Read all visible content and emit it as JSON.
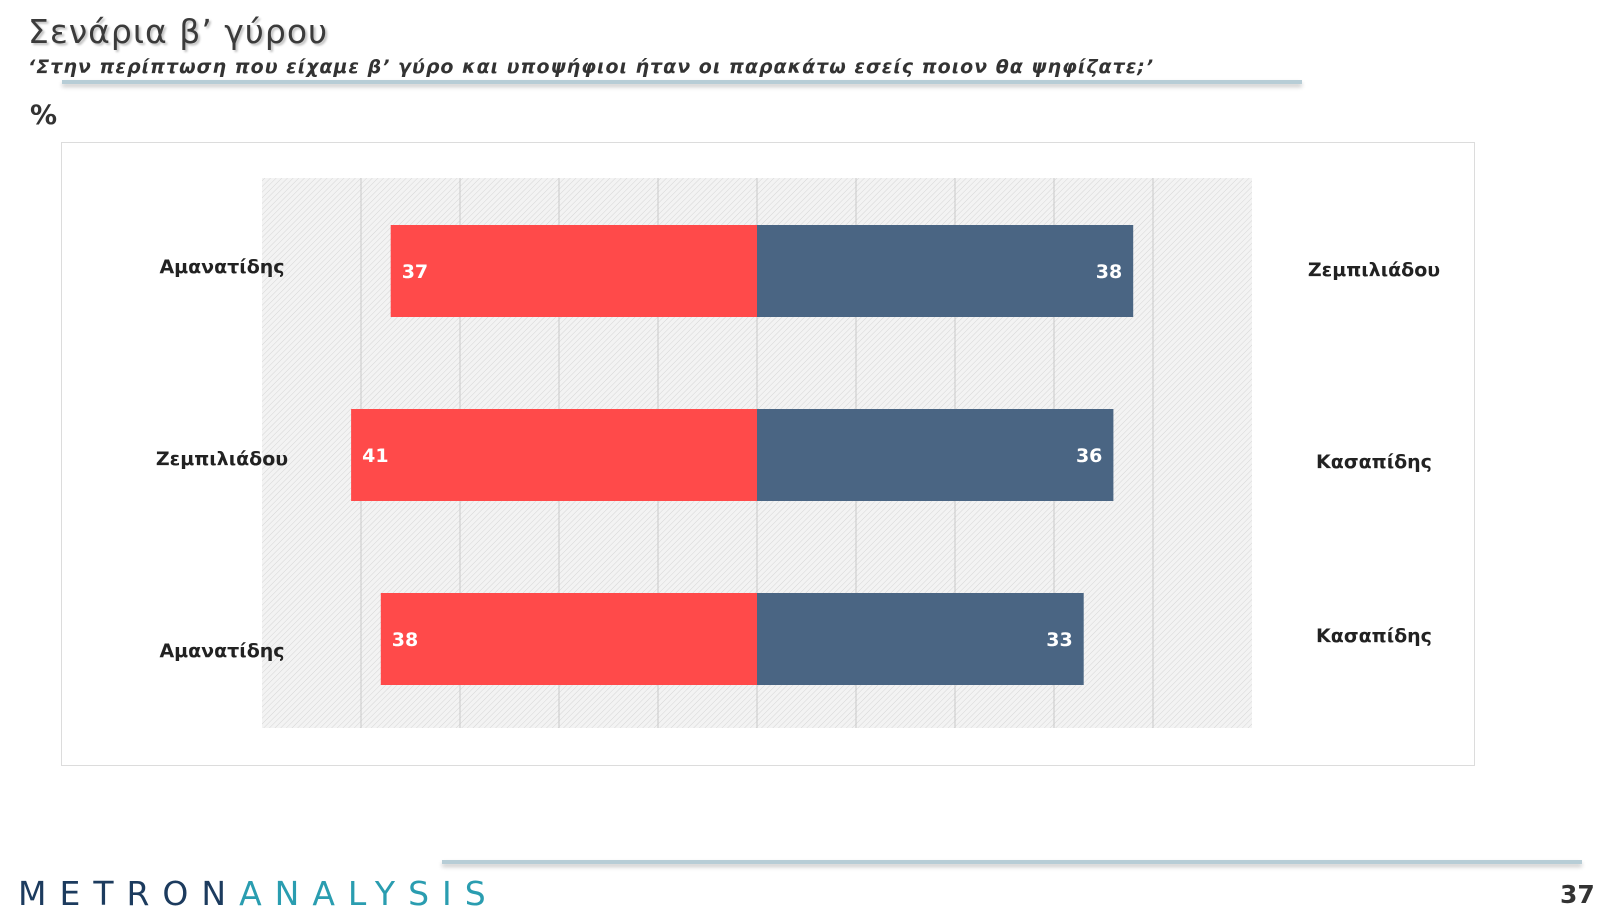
{
  "header": {
    "title": "Σενάρια β’ γύρου",
    "subtitle": "‘Στην περίπτωση που είχαμε β’ γύρο και υποψήφιοι ήταν οι παρακάτω εσείς ποιον θα ψηφίζατε;’",
    "unit": "%"
  },
  "chart_data": {
    "type": "bar",
    "orientation": "horizontal-diverging",
    "title": "",
    "xlabel": "",
    "ylabel": "",
    "grid": true,
    "xlim": [
      -50,
      50
    ],
    "categories": [
      "Αμανατίδης vs Ζεμπιλιάδου",
      "Ζεμπιλιάδου vs Κασαπίδης",
      "Αμανατίδης vs Κασαπίδης"
    ],
    "pairs": [
      {
        "left": "Αμανατίδης",
        "right": "Ζεμπιλιάδου"
      },
      {
        "left": "Ζεμπιλιάδου",
        "right": "Κασαπίδης"
      },
      {
        "left": "Αμανατίδης",
        "right": "Κασαπίδης"
      }
    ],
    "series": [
      {
        "side": "left",
        "color": "#ff4a4a",
        "values": [
          37,
          41,
          38
        ]
      },
      {
        "side": "right",
        "color": "#4a6583",
        "values": [
          38,
          36,
          33
        ]
      }
    ]
  },
  "footer": {
    "logo_part1": "METRON",
    "logo_part2": "ANALYSIS",
    "page_number": "37"
  }
}
